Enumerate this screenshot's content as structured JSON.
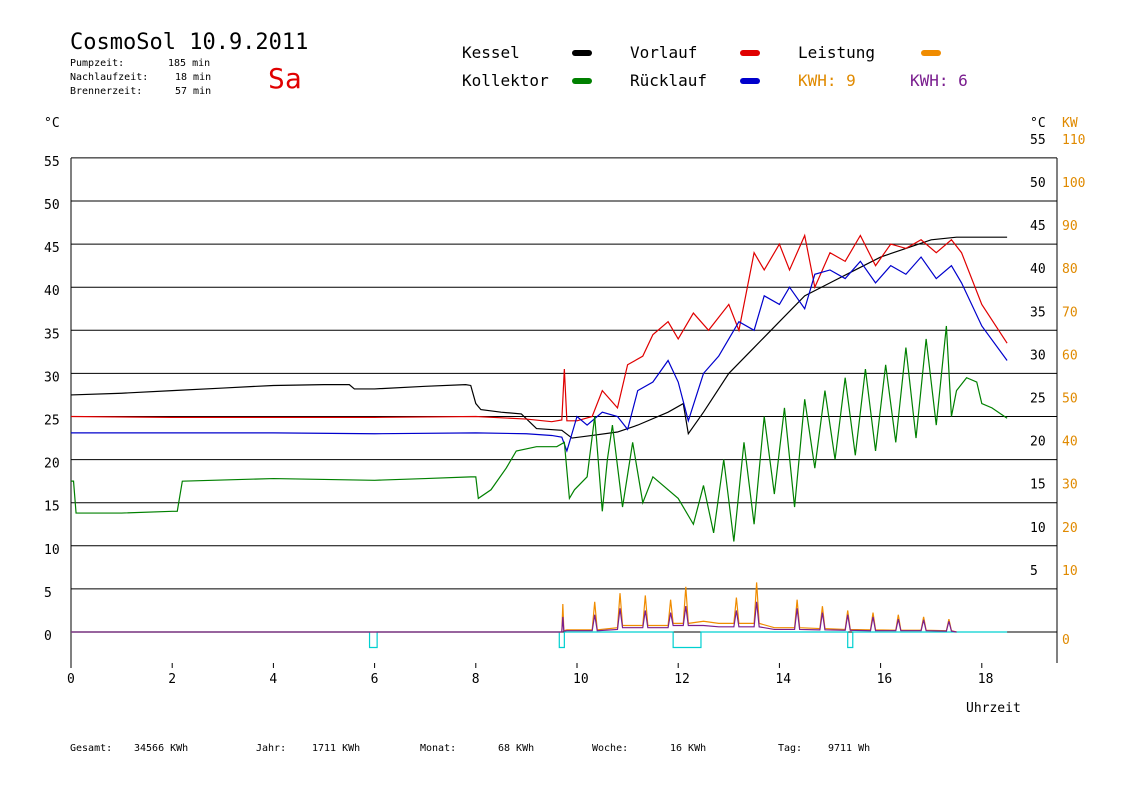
{
  "header": {
    "title": "CosmoSol 10.9.2011",
    "day": "Sa",
    "stats": [
      {
        "label": "Pumpzeit:",
        "value": "185 min"
      },
      {
        "label": "Nachlaufzeit:",
        "value": "18 min"
      },
      {
        "label": "Brennerzeit:",
        "value": "57 min"
      }
    ]
  },
  "legend": {
    "kessel": "Kessel",
    "kollektor": "Kollektor",
    "vorlauf": "Vorlauf",
    "ruecklauf": "Rücklauf",
    "leistung": "Leistung",
    "kwh1": "KWH: 9",
    "kwh2": "KWH: 6"
  },
  "axes": {
    "left_unit": "°C",
    "right_unit": "°C",
    "right_unit2": "KW",
    "xlabel": "Uhrzeit"
  },
  "footer": {
    "gesamt_label": "Gesamt:",
    "gesamt": "34566 KWh",
    "jahr_label": "Jahr:",
    "jahr": "1711 KWh",
    "monat_label": "Monat:",
    "monat": "68 KWh",
    "woche_label": "Woche:",
    "woche": "16 KWh",
    "tag_label": "Tag:",
    "tag": "9711 Wh"
  },
  "colors": {
    "kessel": "#000000",
    "kollektor": "#008000",
    "vorlauf": "#e00000",
    "ruecklauf": "#0000cc",
    "leistung": "#f08c00",
    "kwh2": "#7a1e8f",
    "pump": "#00d0d0"
  },
  "chart_data": {
    "type": "line",
    "xlim": [
      0,
      18.5
    ],
    "ylim": [
      -2.5,
      55
    ],
    "y2lim": [
      -5,
      110
    ],
    "x_ticks": [
      0,
      2,
      4,
      6,
      8,
      10,
      12,
      14,
      16,
      18
    ],
    "y_ticks": [
      0,
      5,
      10,
      15,
      20,
      25,
      30,
      35,
      40,
      45,
      50,
      55
    ],
    "y2_ticks": [
      0,
      10,
      20,
      30,
      40,
      50,
      60,
      70,
      80,
      90,
      100,
      110
    ],
    "y_right_ticks": [
      5,
      10,
      15,
      20,
      25,
      30,
      35,
      40,
      45,
      50,
      55
    ],
    "grid": true,
    "series": [
      {
        "name": "Kessel",
        "key": "kessel",
        "x": [
          0,
          1,
          2,
          3,
          4,
          5,
          5.5,
          5.6,
          6,
          7,
          7.8,
          7.9,
          8.0,
          8.1,
          8.5,
          8.9,
          9.2,
          9.7,
          9.9,
          10.3,
          10.8,
          11.2,
          11.8,
          12.1,
          12.2,
          12.5,
          13.0,
          13.5,
          14.0,
          14.5,
          15.0,
          15.5,
          16.0,
          16.5,
          17.0,
          17.5,
          18.0,
          18.5
        ],
        "y": [
          27.5,
          27.7,
          28.0,
          28.3,
          28.6,
          28.7,
          28.7,
          28.2,
          28.2,
          28.5,
          28.7,
          28.6,
          26.5,
          25.8,
          25.5,
          25.3,
          23.6,
          23.4,
          22.5,
          22.8,
          23.2,
          24.0,
          25.5,
          26.5,
          23.0,
          25.5,
          30.0,
          33.0,
          36.0,
          39.0,
          40.5,
          42.0,
          43.5,
          44.5,
          45.5,
          45.8,
          45.8,
          45.8
        ]
      },
      {
        "name": "Vorlauf",
        "key": "vorlauf",
        "x": [
          0,
          2,
          4,
          6,
          8,
          9.0,
          9.5,
          9.7,
          9.75,
          9.8,
          10.0,
          10.3,
          10.5,
          10.8,
          11.0,
          11.3,
          11.5,
          11.8,
          12.0,
          12.3,
          12.6,
          13.0,
          13.2,
          13.5,
          13.7,
          14.0,
          14.2,
          14.5,
          14.7,
          15.0,
          15.3,
          15.6,
          15.9,
          16.2,
          16.5,
          16.8,
          17.1,
          17.4,
          17.6,
          18.0,
          18.5
        ],
        "y": [
          25.0,
          24.9,
          24.9,
          24.9,
          25.0,
          24.7,
          24.4,
          24.6,
          30.5,
          24.5,
          24.5,
          25.0,
          28.0,
          26.0,
          31.0,
          32.0,
          34.5,
          36.0,
          34.0,
          37.0,
          35.0,
          38.0,
          35.0,
          44.0,
          42.0,
          45.0,
          42.0,
          46.0,
          40.0,
          44.0,
          43.0,
          46.0,
          42.5,
          45.0,
          44.5,
          45.5,
          44.0,
          45.5,
          44.0,
          38.0,
          33.5
        ]
      },
      {
        "name": "Rücklauf",
        "key": "ruecklauf",
        "x": [
          0,
          2,
          4,
          6,
          8,
          9.0,
          9.5,
          9.7,
          9.8,
          10.0,
          10.2,
          10.5,
          10.8,
          11.0,
          11.2,
          11.5,
          11.8,
          12.0,
          12.2,
          12.5,
          12.8,
          13.0,
          13.2,
          13.5,
          13.7,
          14.0,
          14.2,
          14.5,
          14.7,
          15.0,
          15.3,
          15.6,
          15.9,
          16.2,
          16.5,
          16.8,
          17.1,
          17.4,
          17.6,
          18.0,
          18.5
        ],
        "y": [
          23.1,
          23.1,
          23.1,
          23.0,
          23.1,
          23.0,
          22.8,
          22.6,
          21.0,
          25.0,
          24.0,
          25.5,
          25.0,
          23.5,
          28.0,
          29.0,
          31.5,
          29.0,
          24.5,
          30.0,
          32.0,
          34.0,
          36.0,
          35.0,
          39.0,
          38.0,
          40.0,
          37.5,
          41.5,
          42.0,
          41.0,
          43.0,
          40.5,
          42.5,
          41.5,
          43.5,
          41.0,
          42.5,
          40.5,
          35.5,
          31.5
        ]
      },
      {
        "name": "Kollektor",
        "key": "kollektor",
        "x": [
          0,
          0.05,
          0.1,
          1,
          2.0,
          2.1,
          2.2,
          4,
          6,
          7,
          7.9,
          8.0,
          8.05,
          8.3,
          8.6,
          8.8,
          9.2,
          9.6,
          9.75,
          9.85,
          9.95,
          10.2,
          10.35,
          10.5,
          10.6,
          10.7,
          10.9,
          11.1,
          11.3,
          11.5,
          11.7,
          12.0,
          12.3,
          12.5,
          12.7,
          12.9,
          13.1,
          13.3,
          13.5,
          13.7,
          13.9,
          14.1,
          14.3,
          14.5,
          14.7,
          14.9,
          15.1,
          15.3,
          15.5,
          15.7,
          15.9,
          16.1,
          16.3,
          16.5,
          16.7,
          16.9,
          17.1,
          17.3,
          17.4,
          17.5,
          17.7,
          17.9,
          18.0,
          18.2,
          18.5
        ],
        "y": [
          17.5,
          17.5,
          13.8,
          13.8,
          14.0,
          14.0,
          17.5,
          17.8,
          17.6,
          17.8,
          18.0,
          18.0,
          15.5,
          16.5,
          19.0,
          21.0,
          21.5,
          21.5,
          22.0,
          15.5,
          16.5,
          18.0,
          25.0,
          14.0,
          20.0,
          24.0,
          14.5,
          22.0,
          15.0,
          18.0,
          17.0,
          15.5,
          12.5,
          17.0,
          11.5,
          20.0,
          10.5,
          22.0,
          12.5,
          25.0,
          16.0,
          26.0,
          14.5,
          27.0,
          19.0,
          28.0,
          20.0,
          29.5,
          20.5,
          30.5,
          21.0,
          31.0,
          22.0,
          33.0,
          22.5,
          34.0,
          24.0,
          35.5,
          25.0,
          28.0,
          29.5,
          29.0,
          26.5,
          26.0,
          24.8
        ]
      },
      {
        "name": "Leistung",
        "key": "leistung",
        "x": [
          0,
          9.7,
          9.72,
          9.74,
          9.8,
          10.3,
          10.35,
          10.4,
          10.8,
          10.85,
          10.9,
          11.3,
          11.35,
          11.4,
          11.8,
          11.85,
          11.9,
          12.1,
          12.15,
          12.2,
          12.5,
          12.8,
          13.1,
          13.15,
          13.2,
          13.5,
          13.55,
          13.6,
          13.9,
          14.3,
          14.35,
          14.4,
          14.8,
          14.85,
          14.9,
          15.3,
          15.35,
          15.4,
          15.8,
          15.85,
          15.9,
          16.3,
          16.35,
          16.4,
          16.8,
          16.85,
          16.9,
          17.3,
          17.35,
          17.4,
          17.5
        ],
        "y": [
          0,
          0,
          6.5,
          0.3,
          0.5,
          0.5,
          7.0,
          0.5,
          1.0,
          9.0,
          1.5,
          1.5,
          8.5,
          1.5,
          1.5,
          7.5,
          2.0,
          2.0,
          10.5,
          2.0,
          2.5,
          2.0,
          2.0,
          8.0,
          2.0,
          2.0,
          11.5,
          2.0,
          1.0,
          1.0,
          7.5,
          1.0,
          0.8,
          6.0,
          0.8,
          0.6,
          5.0,
          0.6,
          0.5,
          4.5,
          0.5,
          0.4,
          4.0,
          0.4,
          0.4,
          3.5,
          0.4,
          0.3,
          3.0,
          0.3,
          0
        ]
      },
      {
        "name": "KWH: 6",
        "key": "kwh2",
        "x": [
          0,
          9.7,
          9.72,
          9.74,
          9.8,
          10.3,
          10.35,
          10.4,
          10.8,
          10.85,
          10.9,
          11.3,
          11.35,
          11.4,
          11.8,
          11.85,
          11.9,
          12.1,
          12.15,
          12.2,
          12.5,
          12.8,
          13.1,
          13.15,
          13.2,
          13.5,
          13.55,
          13.6,
          13.9,
          14.3,
          14.35,
          14.4,
          14.8,
          14.85,
          14.9,
          15.3,
          15.35,
          15.4,
          15.8,
          15.85,
          15.9,
          16.3,
          16.35,
          16.4,
          16.8,
          16.85,
          16.9,
          17.3,
          17.35,
          17.4,
          17.5
        ],
        "y": [
          0,
          0,
          3.5,
          0.2,
          0.3,
          0.3,
          4.0,
          0.3,
          0.6,
          5.5,
          1.0,
          1.0,
          5.0,
          1.0,
          1.0,
          4.5,
          1.5,
          1.5,
          6.0,
          1.5,
          1.5,
          1.2,
          1.2,
          5.0,
          1.2,
          1.2,
          7.0,
          1.2,
          0.6,
          0.6,
          5.5,
          0.6,
          0.5,
          4.5,
          0.5,
          0.4,
          4.0,
          0.4,
          0.3,
          3.5,
          0.3,
          0.3,
          3.0,
          0.3,
          0.3,
          2.8,
          0.3,
          0.2,
          2.5,
          0.2,
          0
        ]
      }
    ],
    "pump": {
      "name": "Pumpe",
      "x": [
        0,
        5.9,
        5.9,
        6.05,
        6.05,
        9.65,
        9.65,
        9.75,
        9.75,
        11.9,
        11.9,
        12.45,
        12.45,
        15.35,
        15.35,
        15.45,
        15.45,
        18.5
      ],
      "y": [
        0,
        0,
        -1.8,
        -1.8,
        0,
        0,
        -1.8,
        -1.8,
        0,
        0,
        -1.8,
        -1.8,
        0,
        0,
        -1.8,
        -1.8,
        0,
        0
      ]
    }
  }
}
